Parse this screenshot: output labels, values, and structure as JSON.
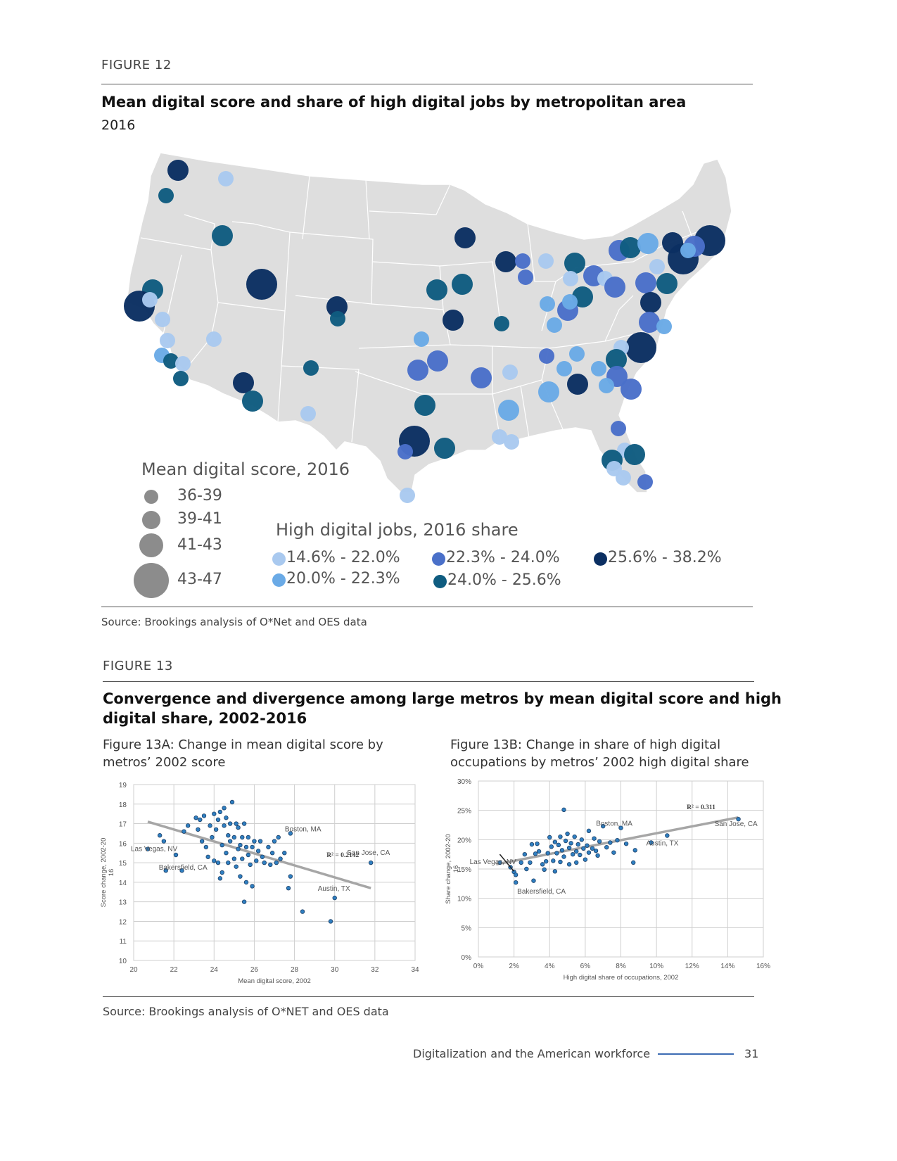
{
  "figure12": {
    "label": "FIGURE 12",
    "title": "Mean digital score and share of high digital jobs by metropolitan area",
    "subtitle": "2016",
    "source": "Source: Brookings analysis of O*Net and OES data",
    "legend_size": {
      "title": "Mean digital score, 2016",
      "items": [
        "36-39",
        "39-41",
        "41-43",
        "43-47"
      ]
    },
    "legend_color": {
      "title": "High digital jobs, 2016 share",
      "items": [
        {
          "label": "14.6% - 22.0%",
          "color": "#a9c9ef"
        },
        {
          "label": "20.0% - 22.3%",
          "color": "#6aaae6"
        },
        {
          "label": "22.3% - 24.0%",
          "color": "#4a70c9"
        },
        {
          "label": "24.0% - 25.6%",
          "color": "#0f5c80"
        },
        {
          "label": "25.6% - 38.2%",
          "color": "#0b2f62"
        }
      ]
    }
  },
  "figure13": {
    "label": "FIGURE 13",
    "title_line1": "Convergence and divergence among large metros by mean digital score and high",
    "title_line2": "digital share, 2002-2016",
    "source": "Source: Brookings analysis of O*NET and OES data"
  },
  "chart_data": [
    {
      "type": "scatter",
      "title_line1": "Figure 13A: Change in mean digital score by",
      "title_line2": "metros’ 2002 score",
      "xlabel": "Mean digital score, 2002",
      "ylabel": "Score change, 2002-20",
      "ylabel2": "16",
      "xlim": [
        20,
        34
      ],
      "ylim": [
        10,
        19
      ],
      "xticks": [
        "20",
        "22",
        "24",
        "26",
        "28",
        "30",
        "32",
        "34"
      ],
      "yticks": [
        "10",
        "11",
        "12",
        "13",
        "14",
        "15",
        "16",
        "17",
        "18",
        "19"
      ],
      "r2": "R² = 0.2142",
      "trendline": [
        [
          20.7,
          17.1
        ],
        [
          31.8,
          13.7
        ]
      ],
      "annotations": [
        {
          "text": "Las Vegas, NV",
          "x": 20.7,
          "y": 15.7
        },
        {
          "text": "Bakersfield, CA",
          "x": 21.6,
          "y": 14.6
        },
        {
          "text": "Boston, MA",
          "x": 27.8,
          "y": 16.5
        },
        {
          "text": "San Jose, CA",
          "x": 31.8,
          "y": 15.0
        },
        {
          "text": "Austin, TX",
          "x": 30.0,
          "y": 13.2
        }
      ],
      "points": [
        [
          20.7,
          15.7
        ],
        [
          21.3,
          16.4
        ],
        [
          21.5,
          16.1
        ],
        [
          21.6,
          14.6
        ],
        [
          22.1,
          15.4
        ],
        [
          22.4,
          14.6
        ],
        [
          22.5,
          16.6
        ],
        [
          22.7,
          16.9
        ],
        [
          23.1,
          17.3
        ],
        [
          23.2,
          16.7
        ],
        [
          23.3,
          17.2
        ],
        [
          23.4,
          16.1
        ],
        [
          23.5,
          17.4
        ],
        [
          23.6,
          15.8
        ],
        [
          23.7,
          15.3
        ],
        [
          23.8,
          16.9
        ],
        [
          23.9,
          16.3
        ],
        [
          24.0,
          15.1
        ],
        [
          24.0,
          17.5
        ],
        [
          24.1,
          16.7
        ],
        [
          24.2,
          17.2
        ],
        [
          24.2,
          15.0
        ],
        [
          24.3,
          17.6
        ],
        [
          24.3,
          14.2
        ],
        [
          24.4,
          15.9
        ],
        [
          24.4,
          14.5
        ],
        [
          24.5,
          17.8
        ],
        [
          24.5,
          16.9
        ],
        [
          24.6,
          17.3
        ],
        [
          24.6,
          15.5
        ],
        [
          24.7,
          16.4
        ],
        [
          24.7,
          15.0
        ],
        [
          24.8,
          16.1
        ],
        [
          24.8,
          17.0
        ],
        [
          24.9,
          18.1
        ],
        [
          25.0,
          16.3
        ],
        [
          25.0,
          15.2
        ],
        [
          25.1,
          17.0
        ],
        [
          25.1,
          14.8
        ],
        [
          25.2,
          15.7
        ],
        [
          25.2,
          16.8
        ],
        [
          25.3,
          15.9
        ],
        [
          25.3,
          14.3
        ],
        [
          25.4,
          16.3
        ],
        [
          25.4,
          15.2
        ],
        [
          25.5,
          17.0
        ],
        [
          25.5,
          13.0
        ],
        [
          25.6,
          15.8
        ],
        [
          25.6,
          14.0
        ],
        [
          25.7,
          16.3
        ],
        [
          25.7,
          15.4
        ],
        [
          25.8,
          14.9
        ],
        [
          25.9,
          15.8
        ],
        [
          25.9,
          13.8
        ],
        [
          26.0,
          16.1
        ],
        [
          26.1,
          15.1
        ],
        [
          26.2,
          15.6
        ],
        [
          26.3,
          16.1
        ],
        [
          26.4,
          15.3
        ],
        [
          26.5,
          15.0
        ],
        [
          26.7,
          15.8
        ],
        [
          26.8,
          14.9
        ],
        [
          26.9,
          15.5
        ],
        [
          27.0,
          16.1
        ],
        [
          27.1,
          15.0
        ],
        [
          27.2,
          16.3
        ],
        [
          27.3,
          15.2
        ],
        [
          27.5,
          15.5
        ],
        [
          27.7,
          13.7
        ],
        [
          27.8,
          16.5
        ],
        [
          27.8,
          14.3
        ],
        [
          28.4,
          12.5
        ],
        [
          29.8,
          12.0
        ],
        [
          30.0,
          13.2
        ],
        [
          31.8,
          15.0
        ]
      ]
    },
    {
      "type": "scatter",
      "title_line1": "Figure 13B: Change in share of high digital",
      "title_line2": "occupations by metros’ 2002 high digital share",
      "xlabel": "High digital share of occupations, 2002",
      "ylabel": "Share change, 2002-20",
      "ylabel2": "16",
      "xlim": [
        0,
        16
      ],
      "ylim": [
        0,
        30
      ],
      "xticks": [
        "0%",
        "2%",
        "4%",
        "6%",
        "8%",
        "10%",
        "12%",
        "14%",
        "16%"
      ],
      "yticks": [
        "0%",
        "5%",
        "10%",
        "15%",
        "20%",
        "25%",
        "30%"
      ],
      "r2": "R² = 0.311",
      "trendline": [
        [
          1.0,
          15.8
        ],
        [
          14.6,
          23.8
        ]
      ],
      "annotations": [
        {
          "text": "Boston, MA",
          "x": 7.0,
          "y": 22.0
        },
        {
          "text": "San Jose, CA",
          "x": 14.6,
          "y": 23.5
        },
        {
          "text": "Las Vegas, NV",
          "x": 1.8,
          "y": 15.6
        },
        {
          "text": "Bakersfield, CA",
          "x": 2.1,
          "y": 12.7
        },
        {
          "text": "Austin, TX",
          "x": 9.5,
          "y": 19.5
        }
      ],
      "points": [
        [
          1.2,
          16.1
        ],
        [
          1.8,
          15.3
        ],
        [
          2.0,
          14.5
        ],
        [
          2.1,
          12.7
        ],
        [
          2.1,
          14.0
        ],
        [
          2.4,
          16.1
        ],
        [
          2.6,
          17.5
        ],
        [
          2.7,
          15.0
        ],
        [
          2.9,
          16.1
        ],
        [
          3.0,
          19.2
        ],
        [
          3.1,
          13.0
        ],
        [
          3.2,
          17.6
        ],
        [
          3.3,
          19.3
        ],
        [
          3.4,
          18.0
        ],
        [
          3.6,
          15.8
        ],
        [
          3.7,
          14.9
        ],
        [
          3.8,
          16.3
        ],
        [
          3.9,
          17.7
        ],
        [
          4.0,
          20.4
        ],
        [
          4.1,
          18.8
        ],
        [
          4.2,
          16.4
        ],
        [
          4.3,
          19.6
        ],
        [
          4.3,
          14.6
        ],
        [
          4.4,
          17.7
        ],
        [
          4.5,
          19.1
        ],
        [
          4.6,
          20.5
        ],
        [
          4.6,
          16.2
        ],
        [
          4.7,
          18.2
        ],
        [
          4.8,
          25.1
        ],
        [
          4.8,
          17.1
        ],
        [
          4.9,
          19.8
        ],
        [
          5.0,
          21.0
        ],
        [
          5.1,
          18.6
        ],
        [
          5.1,
          15.8
        ],
        [
          5.2,
          19.4
        ],
        [
          5.3,
          17.5
        ],
        [
          5.4,
          20.5
        ],
        [
          5.5,
          18.0
        ],
        [
          5.5,
          16.1
        ],
        [
          5.6,
          19.2
        ],
        [
          5.7,
          17.4
        ],
        [
          5.8,
          20.0
        ],
        [
          5.9,
          18.5
        ],
        [
          6.0,
          16.6
        ],
        [
          6.1,
          19.0
        ],
        [
          6.2,
          17.8
        ],
        [
          6.2,
          21.5
        ],
        [
          6.4,
          18.5
        ],
        [
          6.5,
          20.2
        ],
        [
          6.6,
          18.1
        ],
        [
          6.7,
          17.3
        ],
        [
          6.8,
          19.7
        ],
        [
          7.0,
          22.3
        ],
        [
          7.2,
          18.7
        ],
        [
          7.4,
          19.5
        ],
        [
          7.6,
          17.8
        ],
        [
          7.8,
          19.9
        ],
        [
          8.0,
          22.0
        ],
        [
          8.3,
          19.3
        ],
        [
          8.7,
          16.1
        ],
        [
          8.8,
          18.2
        ],
        [
          9.7,
          19.5
        ],
        [
          10.6,
          20.7
        ],
        [
          14.6,
          23.5
        ]
      ]
    }
  ],
  "footer": {
    "text": "Digitalization and the American workforce",
    "page": "31",
    "line_color": "#3d6cb4"
  }
}
